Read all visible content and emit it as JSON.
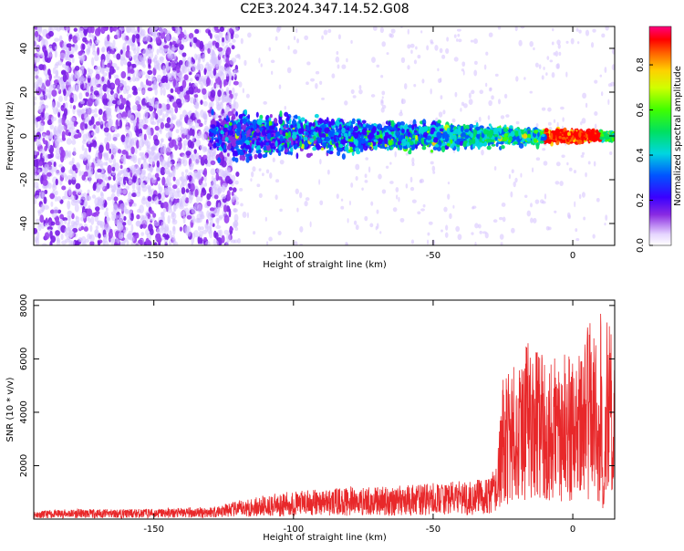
{
  "title": "C2E3.2024.347.14.52.G08",
  "colors": {
    "snr_line": "#e8282a",
    "frame": "#000000",
    "scatter_core": "#2a00e6",
    "scatter_halo": "#8a2be2"
  },
  "chart_data": [
    {
      "type": "heatmap",
      "xlabel": "Height of straight line (km)",
      "ylabel": "Frequency (Hz)",
      "xlim": [
        -193,
        15
      ],
      "ylim": [
        -50,
        50
      ],
      "x_ticks": [
        -150,
        -100,
        -50,
        0
      ],
      "y_ticks": [
        -40,
        -20,
        0,
        20,
        40
      ],
      "grid": false,
      "colorbar": {
        "label": "Normalized spectral amplitude",
        "range": [
          0.0,
          0.97
        ],
        "ticks": [
          0.0,
          0.2,
          0.4,
          0.6,
          0.8
        ],
        "colormap": "rainbow (violet → blue → cyan → green → yellow → red → pink)"
      },
      "features": {
        "broad_scatter_region_km": [
          -193,
          -120
        ],
        "concentrated_band_center_hz": 0,
        "band_halfwidth_hz_at_-100km": 8,
        "band_halfwidth_hz_at_0km": 2,
        "peak_amplitude_region_km": [
          -10,
          10
        ]
      }
    },
    {
      "type": "line",
      "xlabel": "Height of straight line (km)",
      "ylabel": "SNR (10 * v/v)",
      "xlim": [
        -193,
        15
      ],
      "ylim": [
        0,
        8200
      ],
      "x_ticks": [
        -150,
        -100,
        -50,
        0
      ],
      "y_ticks": [
        2000,
        4000,
        6000,
        8000
      ],
      "grid": false,
      "series": [
        {
          "x": [
            -193,
            -180,
            -160,
            -140,
            -130,
            -120,
            -110,
            -100,
            -90,
            -80,
            -70,
            -60,
            -50,
            -40,
            -30,
            -27,
            -25,
            -22,
            -20,
            -18,
            -15,
            -12,
            -10,
            -8,
            -5,
            -2,
            0,
            2,
            4,
            6,
            8,
            9,
            10,
            11,
            12,
            13,
            14,
            15
          ],
          "values": [
            200,
            250,
            250,
            280,
            320,
            450,
            600,
            700,
            750,
            800,
            820,
            850,
            900,
            950,
            1000,
            1500,
            3500,
            3800,
            4000,
            4200,
            4500,
            4300,
            4100,
            4000,
            4200,
            4100,
            4000,
            4100,
            4600,
            5000,
            5200,
            2000,
            5800,
            500,
            5000,
            5200,
            4800,
            4000
          ]
        }
      ]
    }
  ]
}
